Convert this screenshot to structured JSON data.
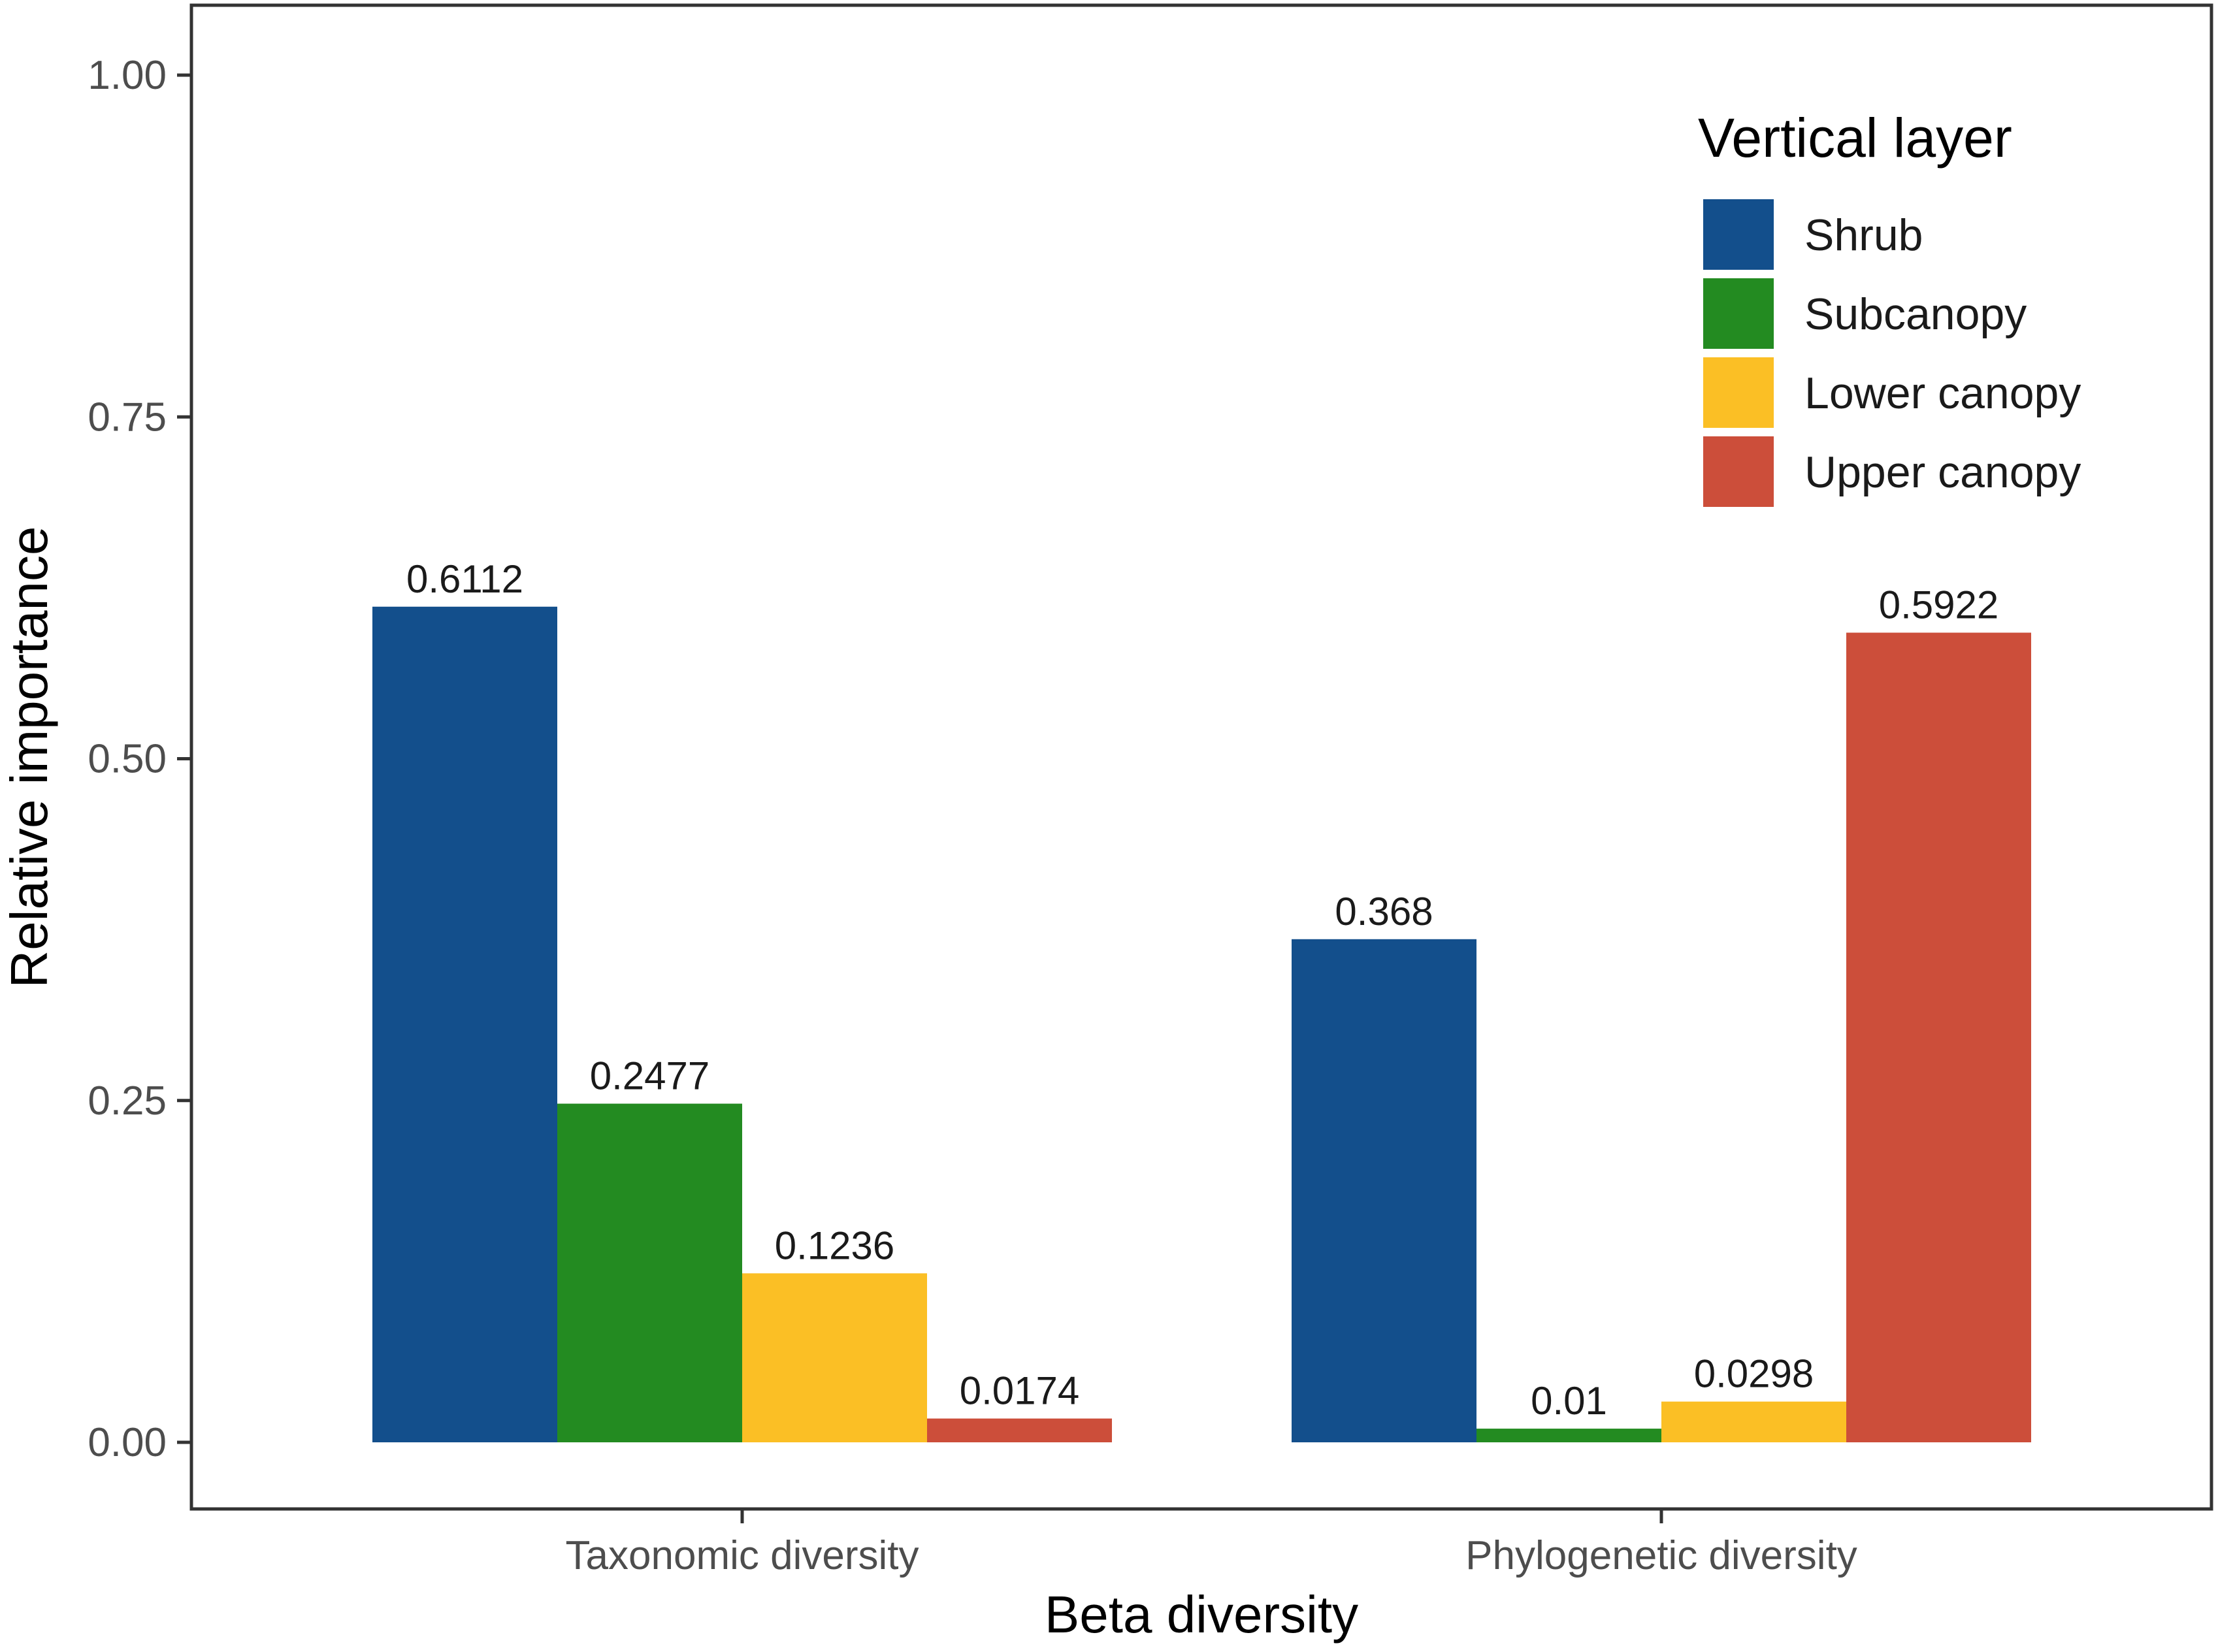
{
  "chart_data": {
    "type": "bar",
    "title": "",
    "xlabel": "Beta diversity",
    "ylabel": "Relative importance",
    "ylim": [
      0,
      1.05
    ],
    "yticks": [
      {
        "value": 0,
        "label": "0.00"
      },
      {
        "value": 0.25,
        "label": "0.25"
      },
      {
        "value": 0.5,
        "label": "0.50"
      },
      {
        "value": 0.75,
        "label": "0.75"
      },
      {
        "value": 1,
        "label": "1.00"
      }
    ],
    "grid": false,
    "categories": [
      "Taxonomic diversity",
      "Phylogenetic diversity"
    ],
    "legend": {
      "title": "Vertical layer",
      "placement": "top-right"
    },
    "series": [
      {
        "name": "Shrub",
        "color": "#134F8C",
        "values": [
          0.6112,
          0.368
        ],
        "labels": [
          "0.6112",
          "0.368"
        ]
      },
      {
        "name": "Subcanopy",
        "color": "#238B21",
        "values": [
          0.2477,
          0.01
        ],
        "labels": [
          "0.2477",
          "0.01"
        ]
      },
      {
        "name": "Lower canopy",
        "color": "#FBBF25",
        "values": [
          0.1236,
          0.0298
        ],
        "labels": [
          "0.1236",
          "0.0298"
        ]
      },
      {
        "name": "Upper canopy",
        "color": "#CC4E3A",
        "values": [
          0.0174,
          0.5922
        ],
        "labels": [
          "0.0174",
          "0.5922"
        ]
      }
    ]
  }
}
